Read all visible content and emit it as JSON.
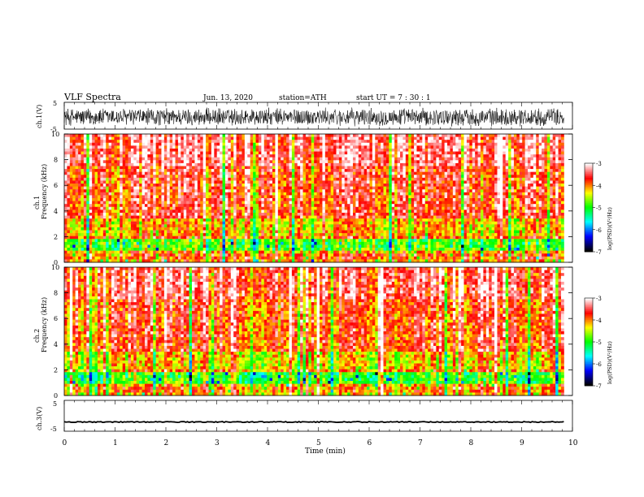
{
  "header": {
    "title": "VLF  Spectra",
    "date": "Jun. 13, 2020",
    "station": "station=ATH",
    "start": "start  UT  =   7  : 30 : 1"
  },
  "chart_data": [
    {
      "type": "line",
      "panel": "ch1-waveform",
      "ylabel": "ch.1(V)",
      "ylim": [
        -5,
        5
      ],
      "yticks": [
        "5",
        "-5"
      ],
      "xlim": [
        0,
        10
      ],
      "x_extent_min": [
        0,
        9.83
      ],
      "description_of_signal": "dense black noise between about -4 and 3 V"
    },
    {
      "type": "heatmap",
      "panel": "ch1-spectrogram",
      "ylabel": "ch.1\nFrequency  (kHz)",
      "ylim": [
        0,
        10
      ],
      "yticks": [
        "0",
        "2",
        "4",
        "6",
        "8",
        "10"
      ],
      "xlim": [
        0,
        10
      ],
      "x_extent_min": [
        0,
        9.83
      ],
      "colorbar": {
        "label": "log(PSD)(V²/Hz)",
        "range": [
          -7,
          -3
        ],
        "ticks": [
          "-3",
          "-4",
          "-5",
          "-6",
          "-7"
        ],
        "colors": [
          "#ffffff",
          "#ff0000",
          "#ffff00",
          "#00ff00",
          "#00ffff",
          "#0000ff",
          "#000000"
        ]
      }
    },
    {
      "type": "heatmap",
      "panel": "ch2-spectrogram",
      "ylabel": "ch.2\nFrequency  (kHz)",
      "ylim": [
        0,
        10
      ],
      "yticks": [
        "0",
        "2",
        "4",
        "6",
        "8",
        "10"
      ],
      "xlim": [
        0,
        10
      ],
      "x_extent_min": [
        0,
        9.83
      ],
      "colorbar": {
        "label": "log(PSD)(V²/Hz)",
        "range": [
          -7,
          -3
        ],
        "ticks": [
          "-3",
          "-4",
          "-5",
          "-6",
          "-7"
        ],
        "colors": [
          "#ffffff",
          "#ff0000",
          "#ffff00",
          "#00ff00",
          "#00ffff",
          "#0000ff",
          "#000000"
        ]
      }
    },
    {
      "type": "line",
      "panel": "ch3-waveform",
      "ylabel": "ch.3(V)",
      "ylim": [
        -5,
        5
      ],
      "yticks": [
        "5",
        "-5"
      ],
      "xlim": [
        0,
        10
      ],
      "x_extent_min": [
        0,
        9.83
      ],
      "xlabel": "Time  (min)",
      "xticks": [
        "0",
        "1",
        "2",
        "3",
        "4",
        "5",
        "6",
        "7",
        "8",
        "9",
        "10"
      ],
      "description_of_signal": "thin flat trace near -2 V"
    }
  ]
}
